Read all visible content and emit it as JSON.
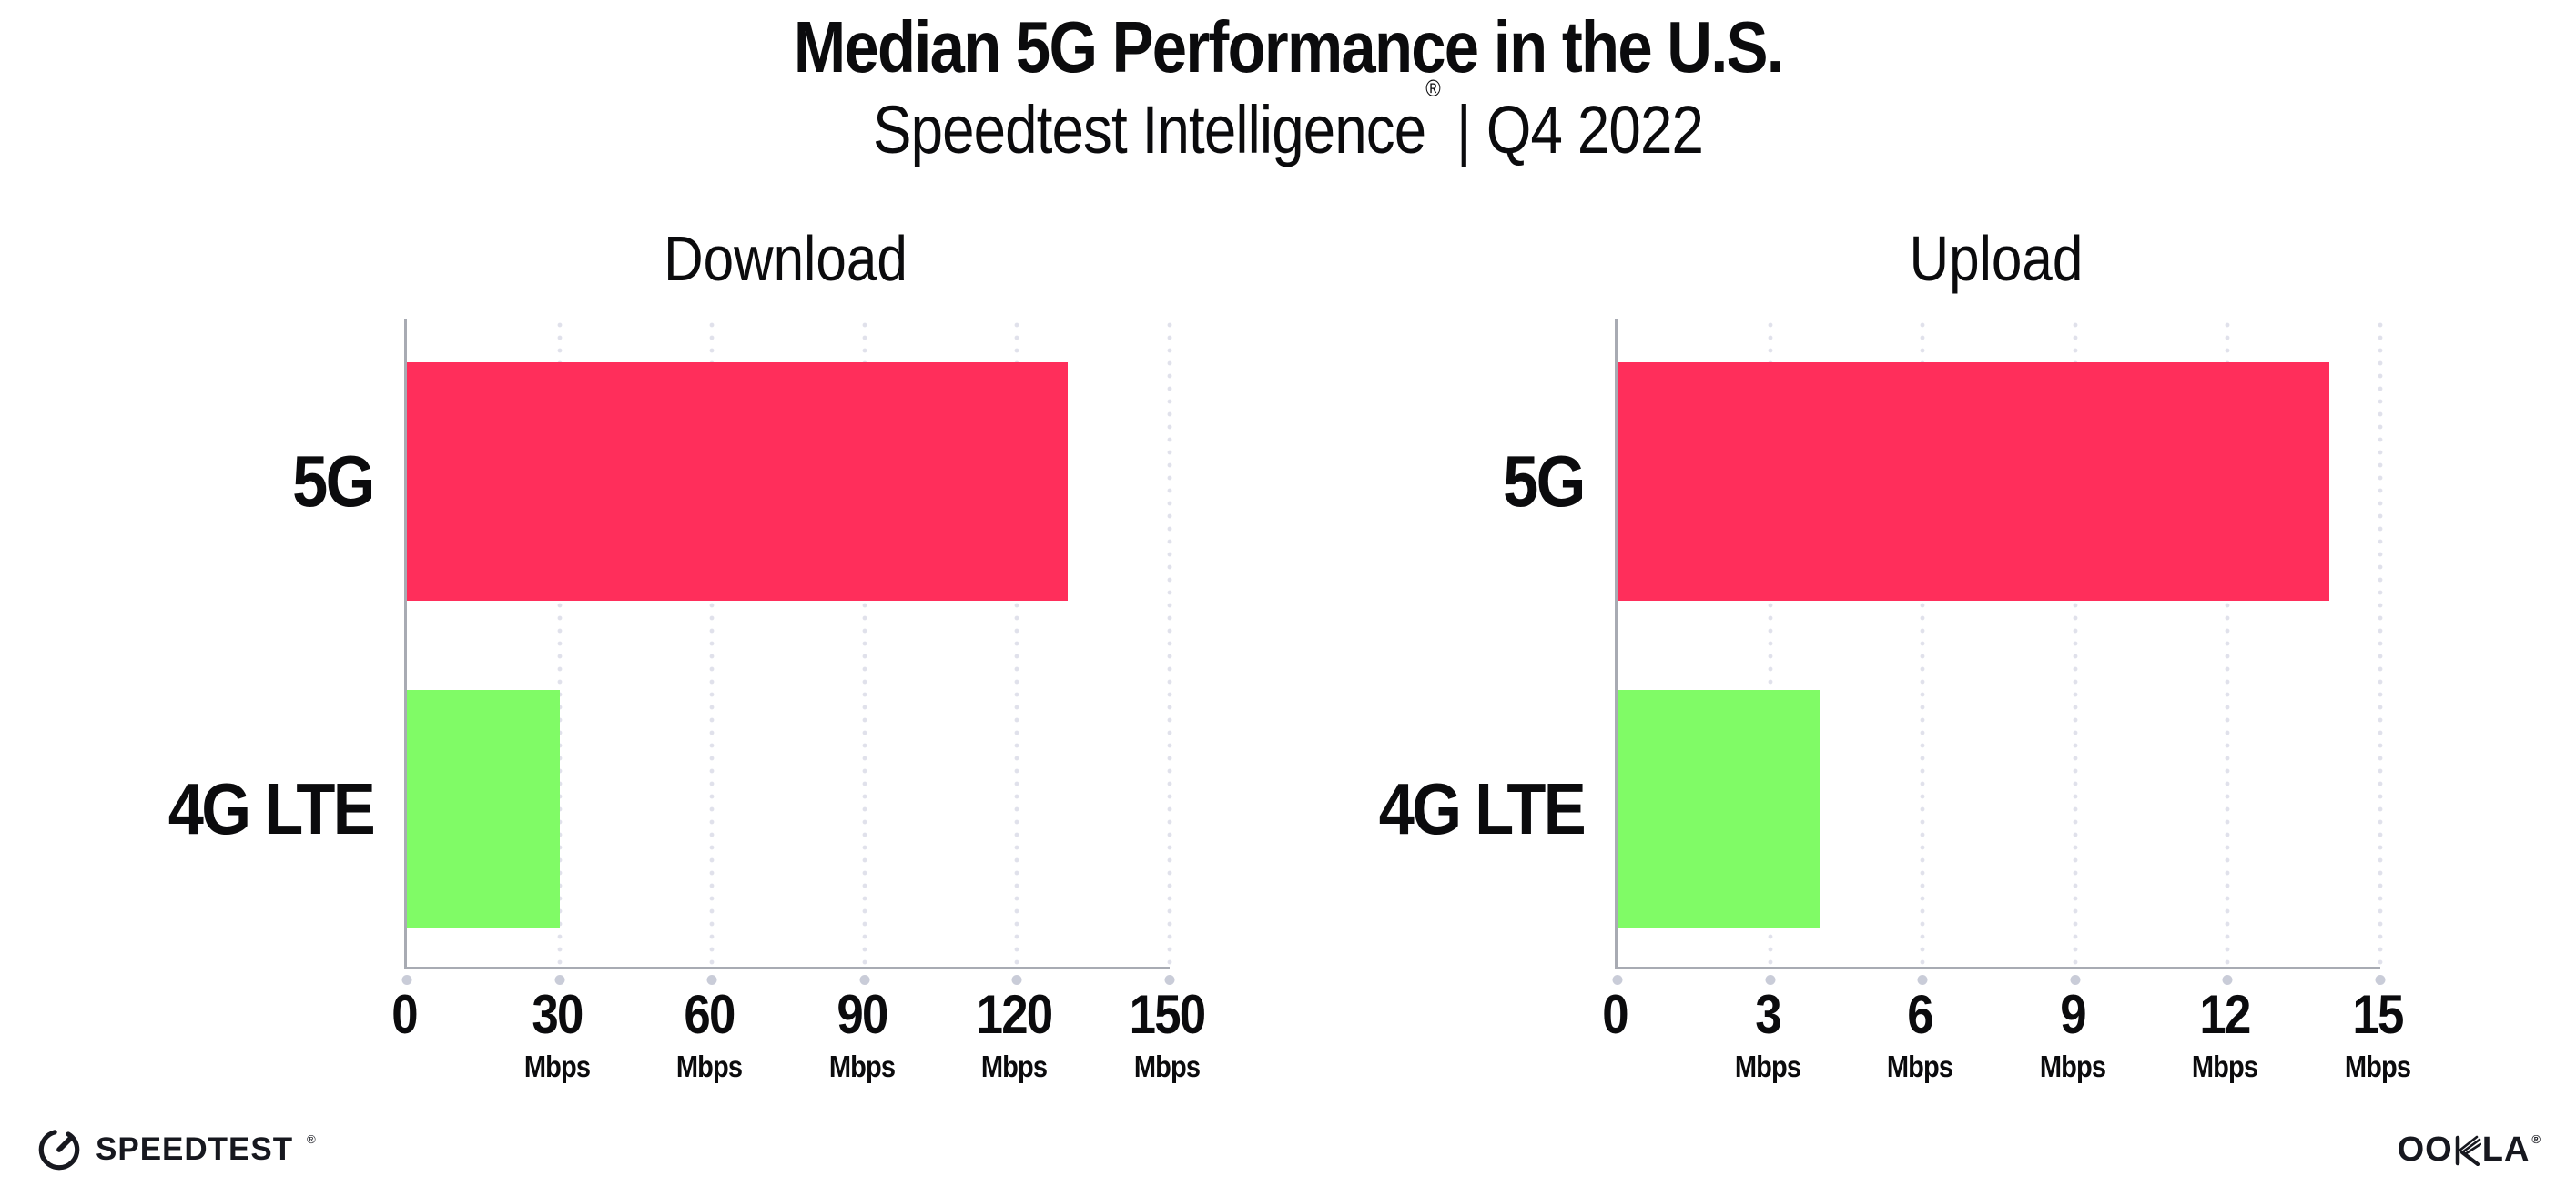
{
  "header": {
    "title": "Median 5G Performance in the U.S.",
    "subtitle": {
      "brand": "Speedtest Intelligence",
      "registered_mark": "®",
      "separator": "|",
      "period": "Q4 2022"
    }
  },
  "colors": {
    "bar_5g": "#FF2E5B",
    "bar_4g_lte": "#80FB66",
    "axis": "#A8ABB3",
    "gridline": "#E0E1EB",
    "tick_dot": "#C9CCD8",
    "text": "#0B0B0D"
  },
  "chart_data": [
    {
      "type": "bar",
      "orientation": "horizontal",
      "title": "Download",
      "categories": [
        "5G",
        "4G LTE"
      ],
      "values": [
        130,
        30
      ],
      "unit": "Mbps",
      "xlim": [
        0,
        150
      ],
      "xticks": [
        0,
        30,
        60,
        90,
        120,
        150
      ],
      "tick_suffix": "Mbps",
      "grid": "dotted-vertical",
      "legend": "none",
      "bar_colors": [
        "#FF2E5B",
        "#80FB66"
      ]
    },
    {
      "type": "bar",
      "orientation": "horizontal",
      "title": "Upload",
      "categories": [
        "5G",
        "4G LTE"
      ],
      "values": [
        14,
        4
      ],
      "unit": "Mbps",
      "xlim": [
        0,
        15
      ],
      "xticks": [
        0,
        3,
        6,
        9,
        12,
        15
      ],
      "tick_suffix": "Mbps",
      "grid": "dotted-vertical",
      "legend": "none",
      "bar_colors": [
        "#FF2E5B",
        "#80FB66"
      ]
    }
  ],
  "footer": {
    "speedtest": {
      "label": "SPEEDTEST",
      "mark": "®"
    },
    "ookla": {
      "label": "OOKLA",
      "before_k": "OO",
      "after_k": "LA",
      "mark": "®"
    }
  }
}
